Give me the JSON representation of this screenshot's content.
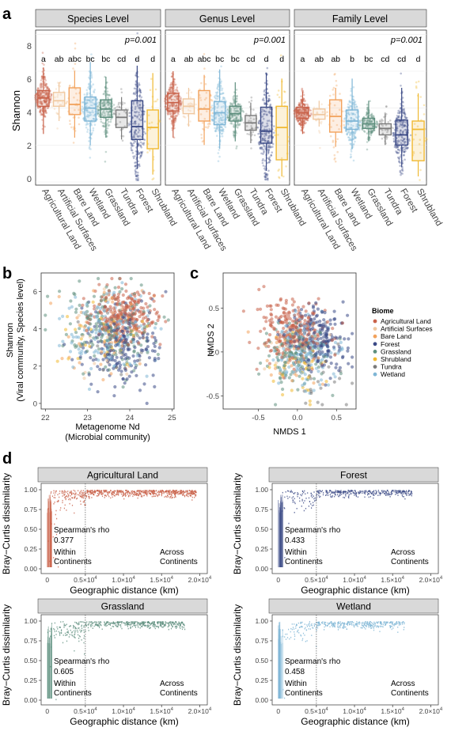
{
  "colors": {
    "Agricultural Land": "#c9624a",
    "Artificial Surfaces": "#f0c8a0",
    "Bare Land": "#f2a25c",
    "Wetland": "#7fb6d6",
    "Grassland": "#5e8f7e",
    "Tundra": "#7b7b7b",
    "Forest": "#3b4a86",
    "Shrubland": "#f0b932",
    "strip_bg": "#d9d9d9",
    "grid": "#ebebeb"
  },
  "panel_a": {
    "label": "a",
    "ylabel": "Shannon",
    "yticks": [
      "0",
      "2",
      "4",
      "6",
      "8"
    ],
    "ylim": [
      0,
      8.4
    ],
    "categories": [
      "Agricultural Land",
      "Artificial Surfaces",
      "Bare Land",
      "Wetland",
      "Grassland",
      "Tundra",
      "Forest",
      "Shrubland"
    ],
    "facets": [
      {
        "title": "Species Level",
        "p": "p=0.001",
        "letters": [
          "a",
          "ab",
          "abc",
          "bc",
          "bc",
          "cd",
          "d",
          "d"
        ],
        "boxes": [
          {
            "q1": 4.1,
            "median": 4.55,
            "q3": 4.95,
            "lo": 2.6,
            "hi": 6.2
          },
          {
            "q1": 4.1,
            "median": 4.4,
            "q3": 4.85,
            "lo": 3.3,
            "hi": 5.4
          },
          {
            "q1": 3.65,
            "median": 4.2,
            "q3": 5.1,
            "lo": 2.4,
            "hi": 6.0
          },
          {
            "q1": 3.3,
            "median": 4.0,
            "q3": 4.6,
            "lo": 2.0,
            "hi": 6.5
          },
          {
            "q1": 3.5,
            "median": 3.95,
            "q3": 4.45,
            "lo": 2.4,
            "hi": 5.7
          },
          {
            "q1": 2.95,
            "median": 3.5,
            "q3": 3.9,
            "lo": 2.3,
            "hi": 4.6
          },
          {
            "q1": 2.3,
            "median": 3.0,
            "q3": 4.4,
            "lo": 0.7,
            "hi": 6.3
          },
          {
            "q1": 1.8,
            "median": 2.95,
            "q3": 3.9,
            "lo": 0.4,
            "hi": 5.9
          }
        ]
      },
      {
        "title": "Genus Level",
        "p": "p=0.001",
        "letters": [
          "a",
          "ab",
          "abc",
          "bc",
          "bc",
          "cd",
          "d",
          "d"
        ],
        "boxes": [
          {
            "q1": 3.85,
            "median": 4.3,
            "q3": 4.8,
            "lo": 2.4,
            "hi": 6.0
          },
          {
            "q1": 3.7,
            "median": 4.1,
            "q3": 4.5,
            "lo": 3.0,
            "hi": 5.1
          },
          {
            "q1": 3.3,
            "median": 3.95,
            "q3": 4.95,
            "lo": 2.0,
            "hi": 5.8
          },
          {
            "q1": 3.1,
            "median": 3.75,
            "q3": 4.35,
            "lo": 1.8,
            "hi": 6.1
          },
          {
            "q1": 3.3,
            "median": 3.7,
            "q3": 4.1,
            "lo": 2.2,
            "hi": 5.4
          },
          {
            "q1": 2.8,
            "median": 3.2,
            "q3": 3.6,
            "lo": 2.1,
            "hi": 4.3
          },
          {
            "q1": 2.1,
            "median": 2.75,
            "q3": 4.05,
            "lo": 0.6,
            "hi": 5.9
          },
          {
            "q1": 1.2,
            "median": 2.95,
            "q3": 4.1,
            "lo": 0.3,
            "hi": 5.6
          }
        ]
      },
      {
        "title": "Family Level",
        "p": "p=0.001",
        "letters": [
          "a",
          "ab",
          "ab",
          "b",
          "bc",
          "cd",
          "cd",
          "d"
        ],
        "boxes": [
          {
            "q1": 3.45,
            "median": 3.75,
            "q3": 4.05,
            "lo": 2.6,
            "hi": 4.9
          },
          {
            "q1": 3.4,
            "median": 3.65,
            "q3": 3.95,
            "lo": 3.0,
            "hi": 4.4
          },
          {
            "q1": 2.7,
            "median": 3.55,
            "q3": 4.45,
            "lo": 1.9,
            "hi": 5.1
          },
          {
            "q1": 2.85,
            "median": 3.3,
            "q3": 3.9,
            "lo": 1.8,
            "hi": 5.6
          },
          {
            "q1": 2.9,
            "median": 3.15,
            "q3": 3.45,
            "lo": 2.2,
            "hi": 4.4
          },
          {
            "q1": 2.55,
            "median": 2.9,
            "q3": 3.15,
            "lo": 2.0,
            "hi": 3.7
          },
          {
            "q1": 2.0,
            "median": 2.55,
            "q3": 3.35,
            "lo": 0.8,
            "hi": 5.1
          },
          {
            "q1": 1.15,
            "median": 2.85,
            "q3": 3.3,
            "lo": 0.3,
            "hi": 4.8
          }
        ]
      }
    ]
  },
  "panel_b": {
    "label": "b",
    "xlabel_line1": "Metagenome Nd",
    "xlabel_line2": "(Microbial community)",
    "ylabel_line1": "Shannon",
    "ylabel_line2": "(Viral community, Species level)",
    "xticks": [
      "22",
      "23",
      "24",
      "25"
    ],
    "yticks": [
      "0",
      "2",
      "4",
      "6"
    ],
    "xlim": [
      21.9,
      25.05
    ],
    "ylim": [
      -0.3,
      7.0
    ]
  },
  "panel_c": {
    "label": "c",
    "xlabel": "NMDS 1",
    "ylabel": "NMDS 2",
    "xticks": [
      "-0.5",
      "0.0",
      "0.5"
    ],
    "yticks": [
      "-0.5",
      "0.0",
      "0.5"
    ],
    "xlim": [
      -0.95,
      0.75
    ],
    "ylim": [
      -0.65,
      0.9
    ]
  },
  "legend": {
    "title": "Biome",
    "items": [
      "Agricultural Land",
      "Artificial Surfaces",
      "Bare Land",
      "Forest",
      "Grassland",
      "Shrubland",
      "Tundra",
      "Wetland"
    ],
    "placement": "right of panel c"
  },
  "panel_d": {
    "label": "d",
    "xlabel": "Geographic distance (km)",
    "ylabel": "Bray−Curtis dissimilarity",
    "yticks": [
      "0.00",
      "0.25",
      "0.50",
      "0.75",
      "1.00"
    ],
    "xtick_zero": "0",
    "xtick_mult": "×10",
    "xtick_exp": "4",
    "xtick_coefs": [
      "0.5",
      "1.0",
      "1.5",
      "2.0"
    ],
    "within_label_line1": "Within",
    "within_label_line2": "Continents",
    "across_label_line1": "Across",
    "across_label_line2": "Continents",
    "rho_label": "Spearman's rho",
    "threshold_km": 5000,
    "xlim_km": [
      -800,
      21000
    ],
    "facets": [
      {
        "title": "Agricultural Land",
        "rho": "0.377",
        "color_key": "Agricultural Land",
        "max_km": 19500
      },
      {
        "title": "Forest",
        "rho": "0.433",
        "color_key": "Forest",
        "max_km": 17500
      },
      {
        "title": "Grassland",
        "rho": "0.605",
        "color_key": "Grassland",
        "max_km": 18000
      },
      {
        "title": "Wetland",
        "rho": "0.458",
        "color_key": "Wetland",
        "max_km": 16500
      }
    ]
  }
}
